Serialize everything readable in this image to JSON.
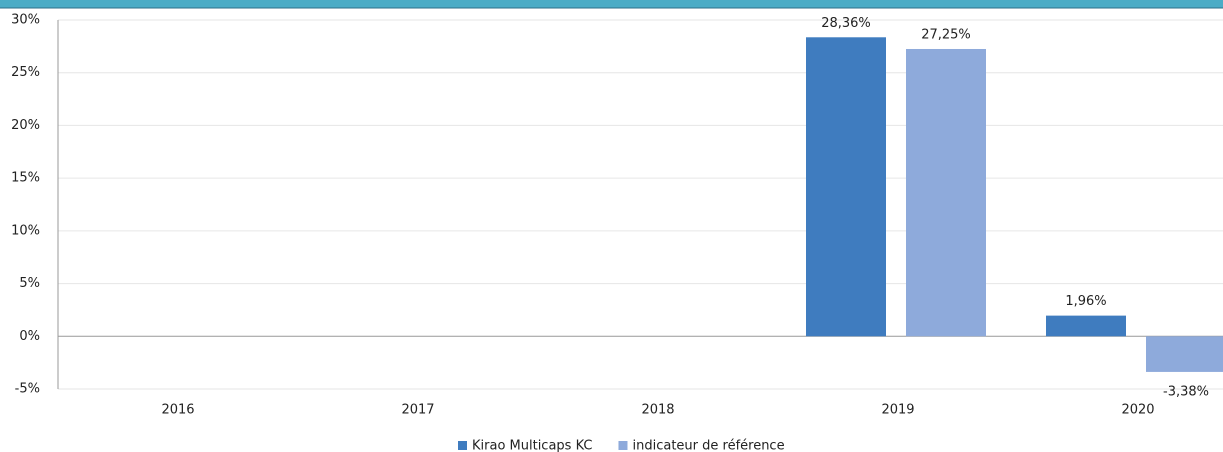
{
  "chart_data": {
    "type": "bar",
    "categories": [
      "2016",
      "2017",
      "2018",
      "2019",
      "2020"
    ],
    "series": [
      {
        "name": "Kirao Multicaps KC",
        "color": "#3f7cbf",
        "values": [
          null,
          null,
          null,
          28.36,
          1.96
        ],
        "value_labels": [
          null,
          null,
          null,
          "28,36%",
          "1,96%"
        ]
      },
      {
        "name": "indicateur de référence",
        "color": "#8eaadb",
        "values": [
          null,
          null,
          null,
          27.25,
          -3.38
        ],
        "value_labels": [
          null,
          null,
          null,
          "27,25%",
          "-3,38%"
        ]
      }
    ],
    "ylim": [
      -5,
      30
    ],
    "yticks": [
      {
        "value": -5,
        "label": "-5%"
      },
      {
        "value": 0,
        "label": "0%"
      },
      {
        "value": 5,
        "label": "5%"
      },
      {
        "value": 10,
        "label": "10%"
      },
      {
        "value": 15,
        "label": "15%"
      },
      {
        "value": 20,
        "label": "20%"
      },
      {
        "value": 25,
        "label": "25%"
      },
      {
        "value": 30,
        "label": "30%"
      }
    ],
    "grid": true,
    "legend": "bottom"
  }
}
